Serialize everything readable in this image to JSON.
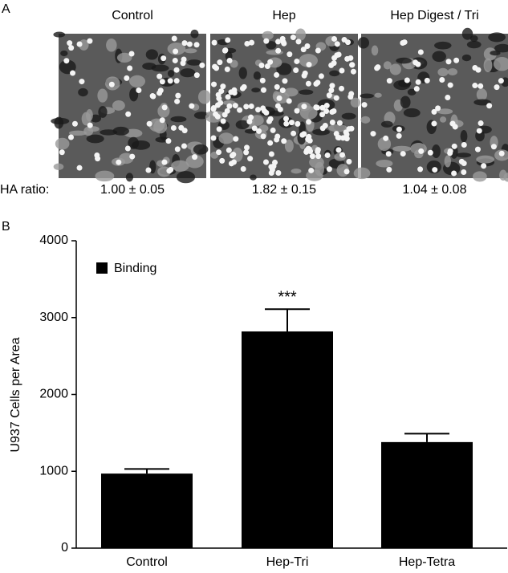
{
  "panel_a": {
    "label": "A",
    "ha_ratio_label": "HA ratio:",
    "images": [
      {
        "title": "Control",
        "ha_ratio": "1.00 ± 0.05"
      },
      {
        "title": "Hep",
        "ha_ratio": "1.82 ± 0.15"
      },
      {
        "title": "Hep Digest / Tri",
        "ha_ratio": "1.04 ± 0.08"
      }
    ]
  },
  "chart_data": {
    "type": "bar",
    "panel_label": "B",
    "ylabel": "U937 Cells per Area",
    "categories": [
      "Control",
      "Hep-Tri",
      "Hep-Tetra"
    ],
    "series": [
      {
        "name": "Binding",
        "color": "#000000",
        "values": [
          970,
          2820,
          1380
        ],
        "errors": [
          60,
          290,
          110
        ]
      }
    ],
    "significance": [
      null,
      "***",
      null
    ],
    "ylim": [
      0,
      4000
    ],
    "yticks": [
      0,
      1000,
      2000,
      3000,
      4000
    ],
    "grid": false,
    "legend": "upper-left"
  }
}
